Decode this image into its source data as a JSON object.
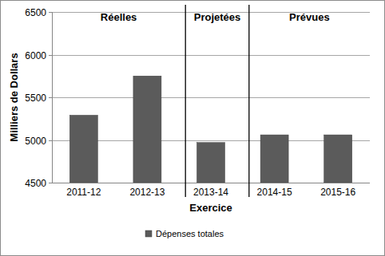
{
  "chart_data": {
    "type": "bar",
    "categories": [
      "2011-12",
      "2012-13",
      "2013-14",
      "2014-15",
      "2015-16"
    ],
    "series": [
      {
        "name": "Dépenses totales",
        "color": "#5b5b5b",
        "values": [
          5290,
          5750,
          4970,
          5060,
          5060
        ]
      }
    ],
    "x_label": "Exercice",
    "y_label": "Milliers de Dollars",
    "annotations": [
      "Réelles",
      "Projetées",
      "Prévues"
    ],
    "ylim": [
      4500,
      6500
    ],
    "yticks": [
      4500,
      5000,
      5500,
      6000,
      6500
    ],
    "grid": true,
    "legend": "bottom"
  }
}
